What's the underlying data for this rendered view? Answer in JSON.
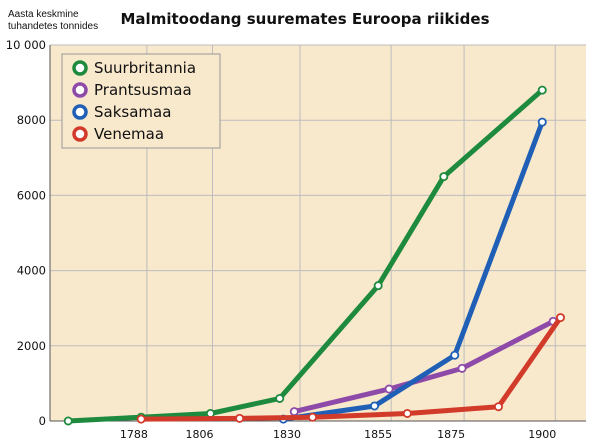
{
  "chart_data": {
    "type": "line",
    "title": "Malmitoodang suuremates Euroopa riikides",
    "unit_label_lines": [
      "Aasta keskmine",
      "tuhandetes tonnides"
    ],
    "y_ticks": [
      "0",
      "2000",
      "4000",
      "6000",
      "8000",
      "10 000"
    ],
    "x_ticks": [
      "1788",
      "1806",
      "1830",
      "1855",
      "1875",
      "1900"
    ],
    "ylim": [
      0,
      10000
    ],
    "grid": true,
    "legend_position": "top-left",
    "series": [
      {
        "name": "Suurbritannia",
        "color": "#1e8a3e",
        "points": [
          [
            1770,
            0
          ],
          [
            1790,
            100
          ],
          [
            1809,
            200
          ],
          [
            1828,
            600
          ],
          [
            1855,
            3600
          ],
          [
            1873,
            6500
          ],
          [
            1900,
            8800
          ]
        ]
      },
      {
        "name": "Prantsusmaa",
        "color": "#8e4aa8",
        "points": [
          [
            1832,
            250
          ],
          [
            1858,
            850
          ],
          [
            1878,
            1400
          ],
          [
            1903,
            2650
          ]
        ]
      },
      {
        "name": "Saksamaa",
        "color": "#1f5fb5",
        "points": [
          [
            1829,
            50
          ],
          [
            1854,
            400
          ],
          [
            1876,
            1750
          ],
          [
            1900,
            7950
          ]
        ]
      },
      {
        "name": "Venemaa",
        "color": "#d23a2a",
        "points": [
          [
            1790,
            50
          ],
          [
            1817,
            70
          ],
          [
            1837,
            100
          ],
          [
            1863,
            200
          ],
          [
            1888,
            380
          ],
          [
            1905,
            2750
          ]
        ]
      }
    ]
  }
}
